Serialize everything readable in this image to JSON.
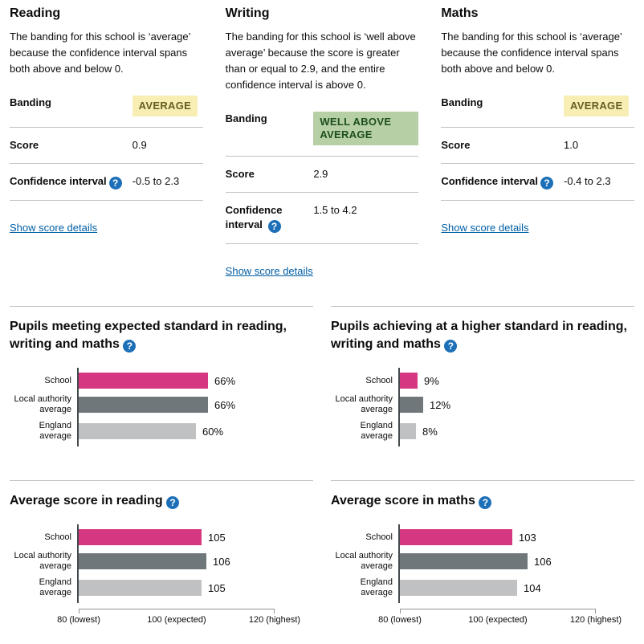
{
  "help": {
    "glyph": "?"
  },
  "subjects": [
    {
      "title": "Reading",
      "description": "The banding for this school is ‘average’ because the confidence interval spans both above and below 0.",
      "banding_label": "Banding",
      "banding_value": "AVERAGE",
      "banding_band": "average",
      "score_label": "Score",
      "score_value": "0.9",
      "ci_label": "Confidence interval",
      "ci_value": "-0.5 to 2.3",
      "details_link": "Show score details"
    },
    {
      "title": "Writing",
      "description": "The banding for this school is ‘well above average’ because the score is greater than or equal to 2.9, and the entire confidence interval is above 0.",
      "banding_label": "Banding",
      "banding_value": "WELL ABOVE AVERAGE",
      "banding_band": "well-above-average",
      "score_label": "Score",
      "score_value": "2.9",
      "ci_label": "Confidence interval",
      "ci_value": "1.5 to 4.2",
      "details_link": "Show score details"
    },
    {
      "title": "Maths",
      "description": "The banding for this school is ‘average’ because the confidence interval spans both above and below 0.",
      "banding_label": "Banding",
      "banding_value": "AVERAGE",
      "banding_band": "average",
      "score_label": "Score",
      "score_value": "1.0",
      "ci_label": "Confidence interval",
      "ci_value": "-0.4 to 2.3",
      "details_link": "Show score details"
    }
  ],
  "colors": {
    "school_bar": "#d53880",
    "local_authority_bar": "#6f777b",
    "england_bar": "#bfc1c3",
    "series": [
      "#d53880",
      "#6f777b",
      "#bfc1c3"
    ],
    "help_icon": "#1d70b8",
    "link": "#005ea5",
    "band_average_bg": "#f8eeb4",
    "band_average_text": "#645f1d",
    "band_well_above_average_bg": "#b6cfa5",
    "band_well_above_average_text": "#1e4e20"
  },
  "chart_data": [
    {
      "type": "bar",
      "title": "Pupils meeting expected standard in reading, writing and maths",
      "categories": [
        "School",
        "Local authority average",
        "England average"
      ],
      "values": [
        66,
        66,
        60
      ],
      "value_labels": [
        "66%",
        "66%",
        "60%"
      ],
      "xlim": [
        0,
        100
      ],
      "axis_ticks": []
    },
    {
      "type": "bar",
      "title": "Pupils achieving at a higher standard in reading, writing and maths",
      "categories": [
        "School",
        "Local authority average",
        "England average"
      ],
      "values": [
        9,
        12,
        8
      ],
      "value_labels": [
        "9%",
        "12%",
        "8%"
      ],
      "xlim": [
        0,
        100
      ],
      "axis_ticks": []
    },
    {
      "type": "bar",
      "title": "Average score in reading",
      "categories": [
        "School",
        "Local authority average",
        "England average"
      ],
      "values": [
        105,
        106,
        105
      ],
      "value_labels": [
        "105",
        "106",
        "105"
      ],
      "xlim": [
        80,
        120
      ],
      "axis_ticks": [
        {
          "value": 80,
          "label": "80 (lowest)"
        },
        {
          "value": 100,
          "label": "100 (expected)"
        },
        {
          "value": 120,
          "label": "120 (highest)"
        }
      ]
    },
    {
      "type": "bar",
      "title": "Average score in maths",
      "categories": [
        "School",
        "Local authority average",
        "England average"
      ],
      "values": [
        103,
        106,
        104
      ],
      "value_labels": [
        "103",
        "106",
        "104"
      ],
      "xlim": [
        80,
        120
      ],
      "axis_ticks": [
        {
          "value": 80,
          "label": "80 (lowest)"
        },
        {
          "value": 100,
          "label": "100 (expected)"
        },
        {
          "value": 120,
          "label": "120 (highest)"
        }
      ]
    }
  ]
}
